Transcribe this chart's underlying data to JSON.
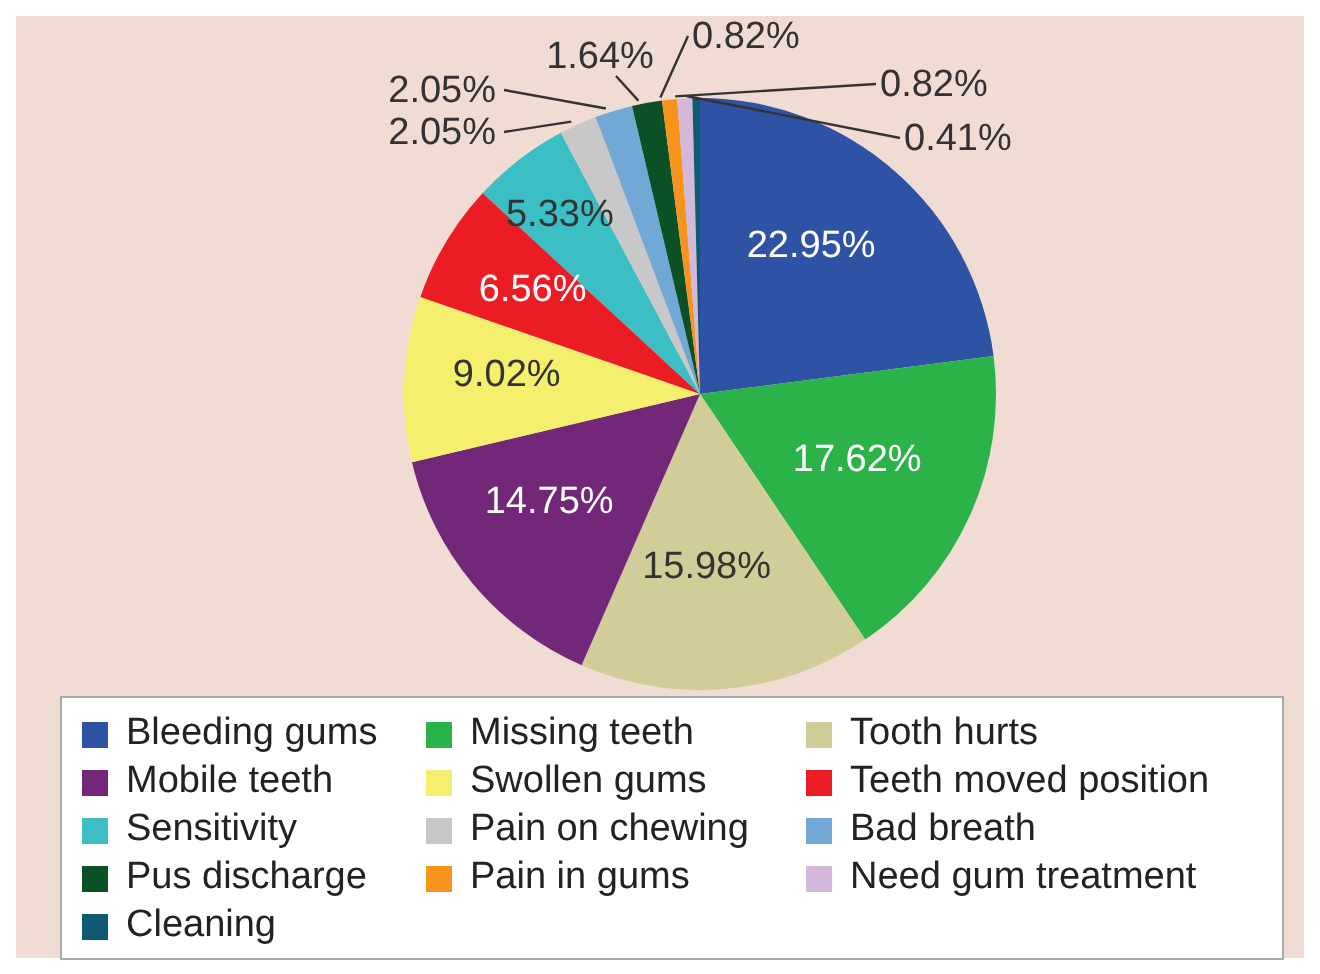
{
  "chart_data": {
    "type": "pie",
    "categories": [
      "Bleeding gums",
      "Missing teeth",
      "Tooth hurts",
      "Mobile teeth",
      "Swollen gums",
      "Teeth moved position",
      "Sensitivity",
      "Pain on chewing",
      "Bad breath",
      "Pus discharge",
      "Pain in gums",
      "Need gum treatment",
      "Cleaning"
    ],
    "values": [
      22.95,
      17.62,
      15.98,
      14.75,
      9.02,
      6.56,
      5.33,
      2.05,
      2.05,
      1.64,
      0.82,
      0.82,
      0.41
    ],
    "value_labels": [
      "22.95%",
      "17.62%",
      "15.98%",
      "14.75%",
      "9.02%",
      "6.56%",
      "5.33%",
      "2.05%",
      "2.05%",
      "1.64%",
      "0.82%",
      "0.82%",
      "0.41%"
    ],
    "colors": [
      "#2e52a4",
      "#2bb34a",
      "#d1cd98",
      "#722778",
      "#f5ef6e",
      "#ec1c24",
      "#3bbfc4",
      "#c8c8c8",
      "#72a8d6",
      "#0c5026",
      "#f7941d",
      "#d4b8d9",
      "#0e5a73"
    ],
    "legend": "bottom"
  }
}
